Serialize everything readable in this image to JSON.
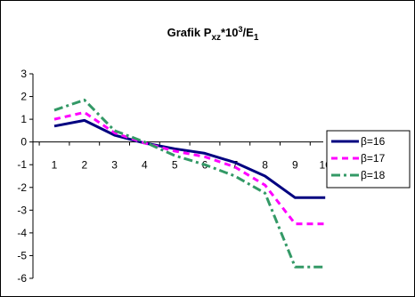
{
  "chart_data": {
    "type": "line",
    "title": {
      "base": "Grafik P",
      "sub": "xz",
      "mid": "*10",
      "sup": "3",
      "tail": "/E",
      "sub2": "1"
    },
    "x": [
      1,
      2,
      3,
      4,
      5,
      6,
      7,
      8,
      9,
      10
    ],
    "xlabel": "",
    "ylabel": "",
    "ylim": [
      -6,
      3
    ],
    "yticks": [
      3,
      2,
      1,
      0,
      -1,
      -2,
      -3,
      -4,
      -5,
      -6
    ],
    "grid": false,
    "legend": "right",
    "series": [
      {
        "name": "β=16",
        "color": "#000080",
        "dash": "solid",
        "values": [
          0.7,
          0.95,
          0.3,
          -0.05,
          -0.3,
          -0.5,
          -0.9,
          -1.5,
          -2.45,
          -2.45
        ]
      },
      {
        "name": "β=17",
        "color": "#ff00ff",
        "dash": "dash",
        "values": [
          1.0,
          1.3,
          0.4,
          -0.05,
          -0.4,
          -0.65,
          -1.1,
          -1.9,
          -3.6,
          -3.6
        ]
      },
      {
        "name": "β=18",
        "color": "#339966",
        "dash": "dashdot",
        "values": [
          1.4,
          1.85,
          0.5,
          0.0,
          -0.6,
          -1.0,
          -1.5,
          -2.25,
          -5.5,
          -5.5
        ]
      }
    ]
  }
}
